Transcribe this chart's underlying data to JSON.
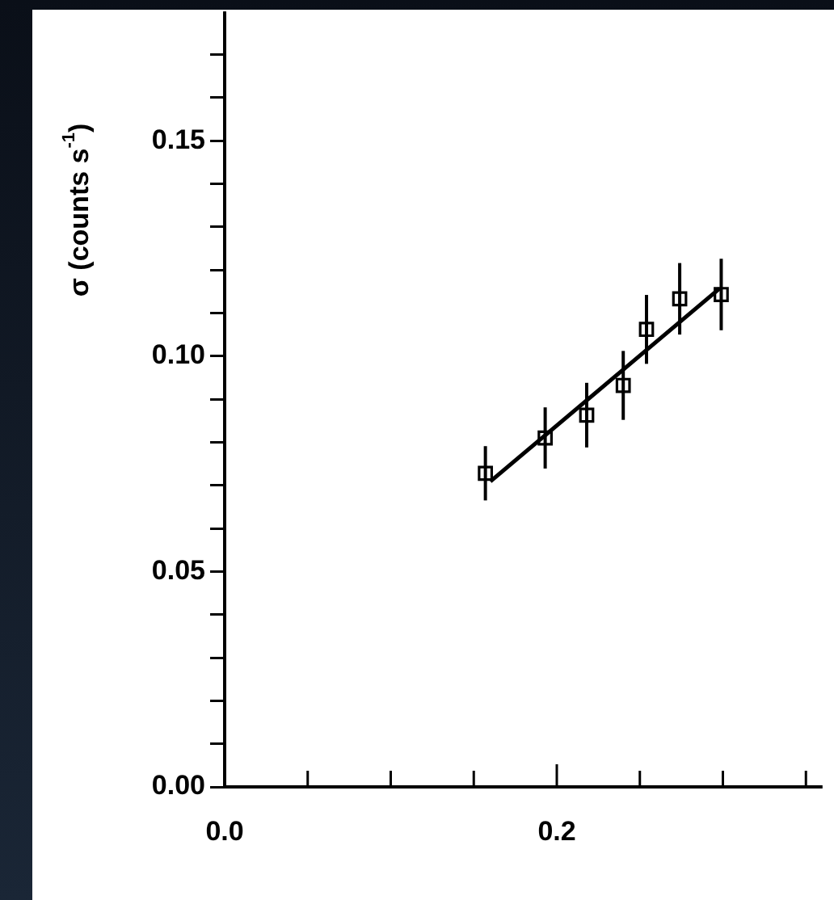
{
  "chart_data": {
    "type": "scatter",
    "ylabel": "σ (counts s$^{-1}$)",
    "xlim": [
      0,
      0.36
    ],
    "ylim": [
      0,
      0.18
    ],
    "xticks": [
      {
        "value": 0,
        "label": "0.0"
      },
      {
        "value": 0.05,
        "label": null
      },
      {
        "value": 0.1,
        "label": null
      },
      {
        "value": 0.15,
        "label": null
      },
      {
        "value": 0.2,
        "label": "0.2"
      },
      {
        "value": 0.25,
        "label": null
      },
      {
        "value": 0.3,
        "label": null
      },
      {
        "value": 0.35,
        "label": null
      }
    ],
    "yticks": [
      {
        "value": 0,
        "label": "0.00"
      },
      {
        "value": 0.01,
        "label": null
      },
      {
        "value": 0.02,
        "label": null
      },
      {
        "value": 0.03,
        "label": null
      },
      {
        "value": 0.04,
        "label": null
      },
      {
        "value": 0.05,
        "label": "0.05"
      },
      {
        "value": 0.06,
        "label": null
      },
      {
        "value": 0.07,
        "label": null
      },
      {
        "value": 0.08,
        "label": null
      },
      {
        "value": 0.09,
        "label": null
      },
      {
        "value": 0.1,
        "label": "0.10"
      },
      {
        "value": 0.11,
        "label": null
      },
      {
        "value": 0.12,
        "label": null
      },
      {
        "value": 0.13,
        "label": null
      },
      {
        "value": 0.14,
        "label": null
      },
      {
        "value": 0.15,
        "label": "0.15"
      },
      {
        "value": 0.16,
        "label": null
      },
      {
        "value": 0.17,
        "label": null
      }
    ],
    "grid": false,
    "legend": false,
    "series": [
      {
        "marker": "square",
        "color": "#000000",
        "x": [
          0.157,
          0.193,
          0.218,
          0.24,
          0.254,
          0.274,
          0.299
        ],
        "values": [
          0.0728,
          0.081,
          0.0863,
          0.0932,
          0.1062,
          0.1133,
          0.1143
        ],
        "errors": [
          0.0063,
          0.0071,
          0.0075,
          0.008,
          0.008,
          0.0083,
          0.0083
        ]
      },
      {
        "type": "line",
        "marker": "none",
        "color": "#000000",
        "x": [
          0.16,
          0.298
        ],
        "values": [
          0.0709,
          0.1157
        ]
      }
    ]
  }
}
